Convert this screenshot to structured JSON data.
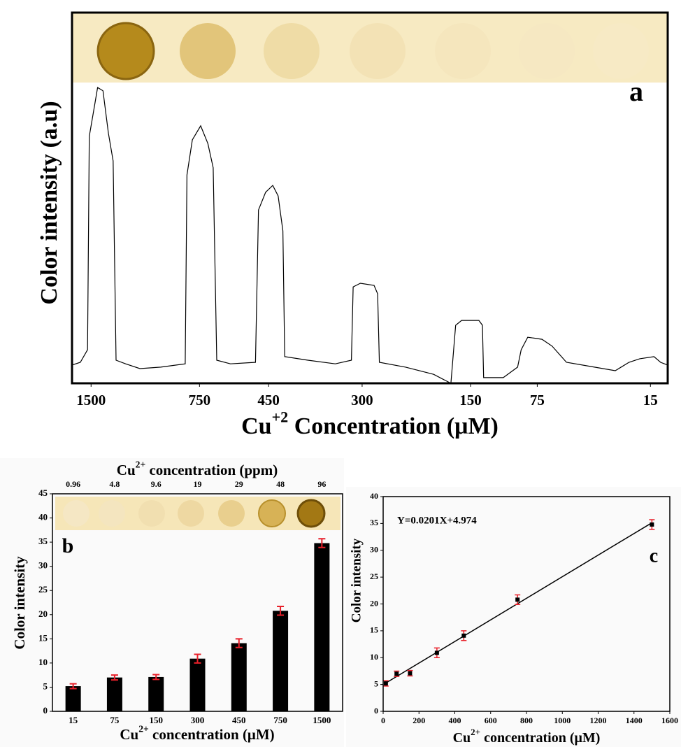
{
  "chart_data": [
    {
      "type": "line",
      "annotation": "a",
      "ylabel": "Color intensity (a.u)",
      "xlabel": {
        "base": "Cu",
        "sup": "+2",
        "rest": " Concentration (μM)"
      },
      "xlim": [
        0,
        100
      ],
      "ylim": [
        0,
        100
      ],
      "xticks": [
        {
          "value": 3.2,
          "label": "1500"
        },
        {
          "value": 21.4,
          "label": "750"
        },
        {
          "value": 33.0,
          "label": "450"
        },
        {
          "value": 48.7,
          "label": "300"
        },
        {
          "value": 66.9,
          "label": "150"
        },
        {
          "value": 78.1,
          "label": "75"
        },
        {
          "value": 97.1,
          "label": "15"
        }
      ],
      "color": "#000000",
      "x": [
        0,
        1.4,
        2.6,
        2.9,
        3.8,
        4.3,
        5.2,
        6.1,
        6.9,
        7.4,
        9.0,
        11.4,
        14.9,
        19.0,
        19.3,
        20.2,
        21.6,
        22.8,
        23.7,
        24.3,
        26.6,
        30.8,
        31.3,
        32.5,
        33.7,
        34.6,
        35.4,
        35.7,
        39.6,
        44.2,
        46.9,
        47.2,
        48.4,
        50.7,
        51.3,
        51.6,
        56.0,
        60.7,
        63.6,
        64.4,
        65.4,
        68.3,
        68.9,
        69.1,
        72.4,
        74.8,
        75.4,
        76.5,
        78.9,
        80.6,
        83.0,
        87.7,
        91.2,
        93.5,
        95.3,
        97.7,
        98.8,
        100
      ],
      "values": [
        6.1,
        7.0,
        11.2,
        82.5,
        93.0,
        98.8,
        97.7,
        83.6,
        74.3,
        7.7,
        6.5,
        4.9,
        5.4,
        6.5,
        69.6,
        81.3,
        86.0,
        80.1,
        72.0,
        7.7,
        6.5,
        7.0,
        57.9,
        63.8,
        66.1,
        62.6,
        50.9,
        8.9,
        7.7,
        6.5,
        7.7,
        32.2,
        33.4,
        32.7,
        29.9,
        7.0,
        5.4,
        3.0,
        0,
        19.4,
        21.0,
        21.0,
        19.4,
        1.9,
        1.9,
        5.4,
        11.2,
        15.4,
        14.7,
        12.4,
        7.0,
        5.4,
        4.2,
        7.0,
        8.2,
        8.9,
        7.0,
        6.1
      ]
    },
    {
      "type": "bar",
      "annotation": "b",
      "ylabel": "Color intensity",
      "xlabel": {
        "base": "Cu",
        "sup": "2+",
        "rest": " concentration (μM)"
      },
      "x2label": {
        "base": "Cu",
        "sup": "2+",
        "rest": " concentration (ppm)"
      },
      "categories": [
        "15",
        "75",
        "150",
        "300",
        "450",
        "750",
        "1500"
      ],
      "categories2": [
        "0.96",
        "4.8",
        "9.6",
        "19",
        "29",
        "48",
        "96"
      ],
      "values": [
        5.2,
        7.0,
        7.1,
        10.9,
        14.1,
        20.8,
        34.8
      ],
      "errors": [
        0.5,
        0.5,
        0.5,
        0.9,
        0.9,
        0.9,
        0.9
      ],
      "color": "#000000",
      "error_color": "#e8202a",
      "ylim": [
        0,
        45
      ],
      "yticks": [
        0,
        5,
        10,
        15,
        20,
        25,
        30,
        35,
        40,
        45
      ]
    },
    {
      "type": "scatter",
      "annotation": "c",
      "fit_label": "Y=0.0201X+4.974",
      "ylabel": "Color intensity",
      "xlabel": {
        "base": "Cu",
        "sup": "2+",
        "rest": " concentration (μM)"
      },
      "x": [
        15,
        75,
        150,
        300,
        450,
        750,
        1500
      ],
      "values": [
        5.2,
        7.0,
        7.1,
        10.9,
        14.1,
        20.8,
        34.8
      ],
      "errors": [
        0.5,
        0.5,
        0.5,
        0.9,
        0.9,
        0.9,
        0.9
      ],
      "fit": {
        "slope": 0.0201,
        "intercept": 4.974,
        "x": [
          15,
          1500
        ]
      },
      "color": "#000000",
      "error_color": "#e8202a",
      "xlim": [
        0,
        1600
      ],
      "xticks": [
        0,
        200,
        400,
        600,
        800,
        1000,
        1200,
        1400,
        1600
      ],
      "ylim": [
        0,
        40
      ],
      "yticks": [
        0,
        5,
        10,
        15,
        20,
        25,
        30,
        35,
        40
      ]
    }
  ]
}
